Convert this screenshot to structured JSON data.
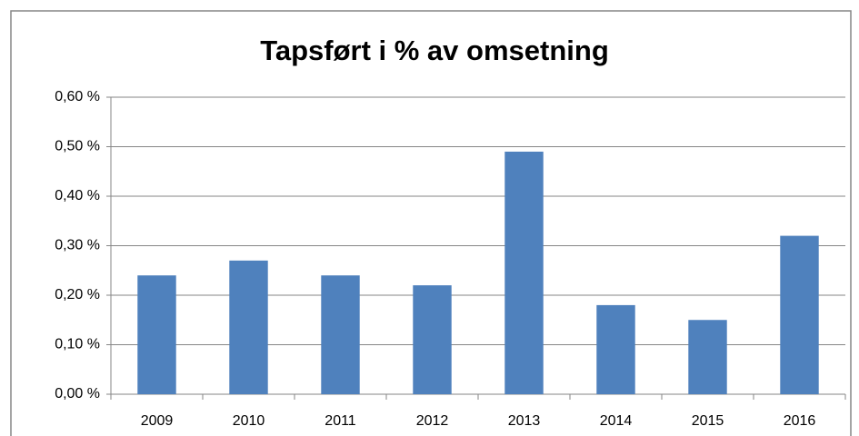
{
  "chart_data": {
    "type": "bar",
    "title": "Tapsført i % av omsetning",
    "categories": [
      "2009",
      "2010",
      "2011",
      "2012",
      "2013",
      "2014",
      "2015",
      "2016"
    ],
    "values": [
      0.24,
      0.27,
      0.24,
      0.22,
      0.49,
      0.18,
      0.15,
      0.32
    ],
    "color": "#4f81bd",
    "ylim": [
      0,
      0.6
    ],
    "yticks": [
      {
        "value": 0,
        "label": "0,00 %"
      },
      {
        "value": 0.1,
        "label": "0,10 %"
      },
      {
        "value": 0.2,
        "label": "0,20 %"
      },
      {
        "value": 0.3,
        "label": "0,30 %"
      },
      {
        "value": 0.4,
        "label": "0,40 %"
      },
      {
        "value": 0.5,
        "label": "0,50 %"
      },
      {
        "value": 0.6,
        "label": "0,60 %"
      }
    ],
    "grid": true
  }
}
